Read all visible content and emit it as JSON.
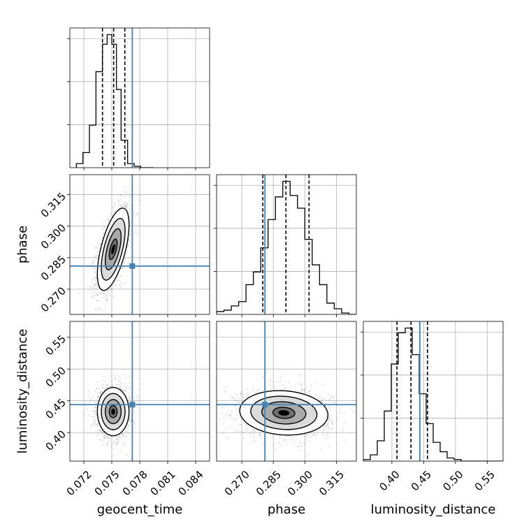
{
  "chart_data": {
    "type": "corner",
    "parameters": [
      "geocent_time",
      "phase",
      "luminosity_distance"
    ],
    "truths": {
      "geocent_time": 0.0772,
      "phase": 0.281,
      "luminosity_distance": 0.444
    },
    "truth_color": "#4682b4",
    "axes": {
      "geocent_time": {
        "range": [
          0.0705,
          0.0855
        ],
        "ticks": [
          "0.072",
          "0.075",
          "0.078",
          "0.081",
          "0.084"
        ]
      },
      "phase": {
        "range": [
          0.258,
          0.3245
        ],
        "ticks": [
          "0.270",
          "0.285",
          "0.300",
          "0.315"
        ]
      },
      "luminosity_distance": {
        "range": [
          0.355,
          0.575
        ],
        "ticks": [
          "0.40",
          "0.45",
          "0.50",
          "0.55"
        ]
      }
    },
    "histograms": {
      "geocent_time": {
        "bin_edges": [
          0.0712,
          0.0719,
          0.0726,
          0.0733,
          0.074,
          0.0745,
          0.075,
          0.0755,
          0.076,
          0.0767,
          0.0774,
          0.0781,
          0.0788,
          0.0795
        ],
        "counts": [
          3,
          11,
          31,
          70,
          90,
          97,
          90,
          57,
          20,
          3,
          1,
          0,
          0
        ],
        "quantiles": [
          0.074,
          0.0752,
          0.0764
        ]
      },
      "phase": {
        "bin_edges": [
          0.258,
          0.2615,
          0.265,
          0.2685,
          0.272,
          0.2755,
          0.279,
          0.2825,
          0.286,
          0.2895,
          0.293,
          0.2965,
          0.3,
          0.3035,
          0.307,
          0.3105,
          0.314,
          0.3175,
          0.321,
          0.3245
        ],
        "counts": [
          2,
          3,
          6,
          9,
          21,
          30,
          47,
          67,
          83,
          94,
          84,
          75,
          53,
          35,
          21,
          8,
          4,
          1,
          0
        ],
        "quantiles": [
          0.28,
          0.291,
          0.302
        ]
      },
      "luminosity_distance": {
        "bin_edges": [
          0.355,
          0.366,
          0.377,
          0.388,
          0.399,
          0.41,
          0.421,
          0.432,
          0.443,
          0.454,
          0.465,
          0.476,
          0.487,
          0.498,
          0.509,
          0.52,
          0.531,
          0.542,
          0.553,
          0.564,
          0.575
        ],
        "counts": [
          1,
          4,
          13,
          32,
          62,
          82,
          85,
          68,
          43,
          24,
          12,
          6,
          2,
          1,
          0,
          0,
          0,
          0,
          0,
          0
        ],
        "quantiles": [
          0.408,
          0.43,
          0.456
        ]
      }
    },
    "joints": [
      {
        "x": "geocent_time",
        "y": "phase",
        "mean": [
          0.07515,
          0.289
        ],
        "std": [
          0.00085,
          0.0098
        ],
        "rho": 0.6
      },
      {
        "x": "geocent_time",
        "y": "luminosity_distance",
        "mean": [
          0.07515,
          0.433
        ],
        "std": [
          0.00085,
          0.019
        ],
        "rho": 0.0
      },
      {
        "x": "phase",
        "y": "luminosity_distance",
        "mean": [
          0.29,
          0.431
        ],
        "std": [
          0.0105,
          0.0175
        ],
        "rho": -0.1
      }
    ],
    "contour_levels_sigma": [
      0.5,
      1.0,
      1.5,
      2.0
    ],
    "title": "",
    "grid": true
  }
}
